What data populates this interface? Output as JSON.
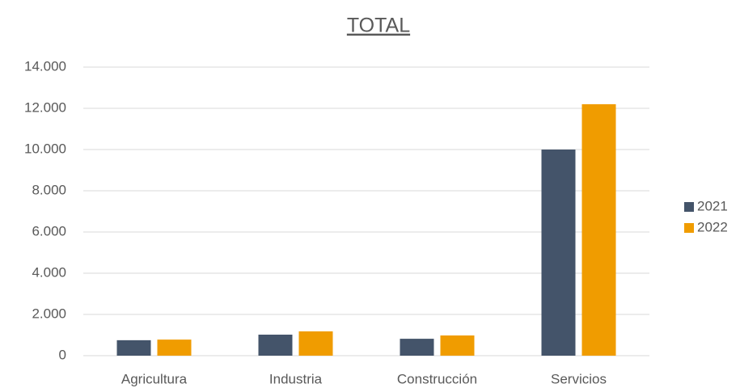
{
  "chart_data": {
    "type": "bar",
    "title": "TOTAL",
    "categories": [
      "Agricultura",
      "Industria",
      "Construcción",
      "Servicios"
    ],
    "series": [
      {
        "name": "2021",
        "color": "#44546a",
        "values": [
          750,
          1020,
          820,
          10000
        ]
      },
      {
        "name": "2022",
        "color": "#f09c00",
        "values": [
          780,
          1180,
          980,
          12200
        ]
      }
    ],
    "ylim": [
      0,
      14000
    ],
    "yticks": [
      0,
      {
        "value": 2000,
        "label": "2.000"
      },
      {
        "value": 4000,
        "label": "4.000"
      },
      {
        "value": 6000,
        "label": "6.000"
      },
      {
        "value": 8000,
        "label": "8.000"
      },
      {
        "value": 10000,
        "label": "10.000"
      },
      {
        "value": 12000,
        "label": "12.000"
      },
      {
        "value": 14000,
        "label": "14.000"
      }
    ],
    "grid": true,
    "legend": "right"
  }
}
